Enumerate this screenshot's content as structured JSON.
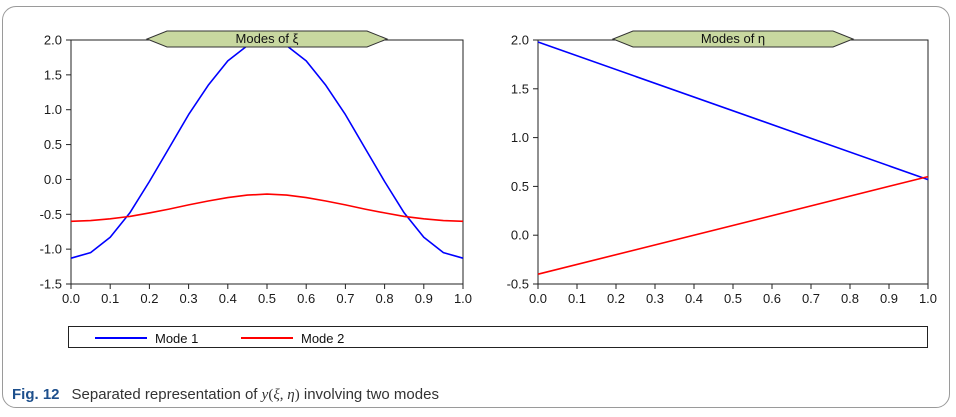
{
  "chart_data": [
    {
      "type": "line",
      "title": "Modes of  ξ",
      "xlim": [
        0,
        1
      ],
      "ylim": [
        -1.5,
        2.0
      ],
      "xticks": [
        0.0,
        0.1,
        0.2,
        0.3,
        0.4,
        0.5,
        0.6,
        0.7,
        0.8,
        0.9,
        1.0
      ],
      "xtick_labels": [
        "0.0",
        "0.1",
        "0.2",
        "0.3",
        "0.4",
        "0.5",
        "0.6",
        "0.7",
        "0.8",
        "0.9",
        "1.0"
      ],
      "yticks": [
        -1.5,
        -1.0,
        -0.5,
        0.0,
        0.5,
        1.0,
        1.5,
        2.0
      ],
      "ytick_labels": [
        "-1.5",
        "-1.0",
        "-0.5",
        "0.0",
        "0.5",
        "1.0",
        "1.5",
        "2.0"
      ],
      "x": [
        0.0,
        0.05,
        0.1,
        0.15,
        0.2,
        0.25,
        0.3,
        0.35,
        0.4,
        0.45,
        0.5,
        0.55,
        0.6,
        0.65,
        0.7,
        0.75,
        0.8,
        0.85,
        0.9,
        0.95,
        1.0
      ],
      "series": [
        {
          "name": "Mode 1",
          "color": "#0000ff",
          "values": [
            -1.13,
            -1.05,
            -0.83,
            -0.48,
            -0.03,
            0.45,
            0.93,
            1.35,
            1.7,
            1.92,
            1.98,
            1.92,
            1.7,
            1.35,
            0.93,
            0.45,
            -0.03,
            -0.48,
            -0.83,
            -1.05,
            -1.13
          ]
        },
        {
          "name": "Mode 2",
          "color": "#ff0000",
          "values": [
            -0.6,
            -0.59,
            -0.565,
            -0.53,
            -0.48,
            -0.425,
            -0.365,
            -0.31,
            -0.26,
            -0.225,
            -0.21,
            -0.225,
            -0.26,
            -0.31,
            -0.365,
            -0.425,
            -0.48,
            -0.53,
            -0.565,
            -0.59,
            -0.6
          ]
        }
      ],
      "grid": false
    },
    {
      "type": "line",
      "title": "Modes of  η",
      "xlim": [
        0,
        1
      ],
      "ylim": [
        -0.5,
        2.0
      ],
      "xticks": [
        0.0,
        0.1,
        0.2,
        0.3,
        0.4,
        0.5,
        0.6,
        0.7,
        0.8,
        0.9,
        1.0
      ],
      "xtick_labels": [
        "0.0",
        "0.1",
        "0.2",
        "0.3",
        "0.4",
        "0.5",
        "0.6",
        "0.7",
        "0.8",
        "0.9",
        "1.0"
      ],
      "yticks": [
        -0.5,
        0.0,
        0.5,
        1.0,
        1.5,
        2.0
      ],
      "ytick_labels": [
        "-0.5",
        "0.0",
        "0.5",
        "1.0",
        "1.5",
        "2.0"
      ],
      "x": [
        0.0,
        1.0
      ],
      "series": [
        {
          "name": "Mode 1",
          "color": "#0000ff",
          "values": [
            1.98,
            0.57
          ]
        },
        {
          "name": "Mode 2",
          "color": "#ff0000",
          "values": [
            -0.4,
            0.6
          ]
        }
      ],
      "grid": false
    }
  ],
  "legend": {
    "placement": "bottom",
    "items": [
      {
        "label": "Mode 1",
        "color": "#0000ff"
      },
      {
        "label": "Mode 2",
        "color": "#ff0000"
      }
    ]
  },
  "caption": {
    "label": "Fig. 12",
    "text_before": "Separated representation of ",
    "func": "y",
    "open_paren": "(",
    "arg1": "ξ",
    "comma": ", ",
    "arg2": "η",
    "close_paren": ")",
    "text_after": " involving two modes"
  },
  "title_banner_color": "#c8d8a0"
}
